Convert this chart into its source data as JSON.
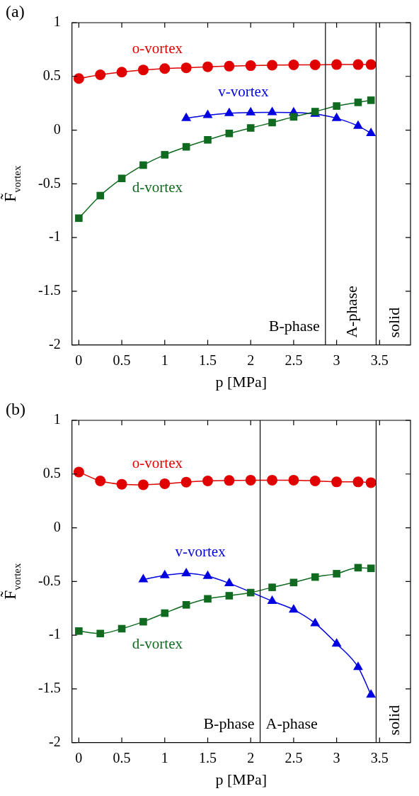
{
  "chart_data": [
    {
      "type": "line",
      "title": "(a)",
      "xlabel": "p [MPa]",
      "ylabel": "F̃$_{vortex}$",
      "xlim": [
        -0.08,
        3.86
      ],
      "ylim": [
        -2,
        1
      ],
      "xticks": [
        0,
        0.5,
        1,
        1.5,
        2,
        2.5,
        3,
        3.5
      ],
      "yticks": [
        -2,
        -1.5,
        -1,
        -0.5,
        0,
        0.5,
        1
      ],
      "grid": false,
      "legend": false,
      "series": [
        {
          "name": "o-vortex",
          "color": "#e00000",
          "marker": "circle",
          "x": [
            0,
            0.25,
            0.5,
            0.75,
            1,
            1.25,
            1.5,
            1.75,
            2,
            2.25,
            2.5,
            2.75,
            3,
            3.25,
            3.4
          ],
          "values": [
            0.48,
            0.515,
            0.54,
            0.56,
            0.573,
            0.58,
            0.59,
            0.595,
            0.6,
            0.604,
            0.607,
            0.607,
            0.61,
            0.61,
            0.61
          ]
        },
        {
          "name": "v-vortex",
          "color": "#0000e0",
          "marker": "triangle",
          "x": [
            1.25,
            1.5,
            1.75,
            2,
            2.25,
            2.5,
            2.75,
            3,
            3.25,
            3.4
          ],
          "values": [
            0.11,
            0.139,
            0.157,
            0.164,
            0.166,
            0.164,
            0.15,
            0.11,
            0.038,
            -0.029
          ]
        },
        {
          "name": "d-vortex",
          "color": "#106a20",
          "marker": "square",
          "x": [
            0,
            0.25,
            0.5,
            0.75,
            1,
            1.25,
            1.5,
            1.75,
            2,
            2.25,
            2.5,
            2.75,
            3,
            3.25,
            3.4
          ],
          "values": [
            -0.82,
            -0.61,
            -0.45,
            -0.326,
            -0.23,
            -0.156,
            -0.091,
            -0.031,
            0.02,
            0.07,
            0.123,
            0.172,
            0.224,
            0.258,
            0.278
          ]
        }
      ],
      "ref_lines": [
        {
          "axis": "x",
          "value": 2.87
        },
        {
          "axis": "x",
          "value": 3.46
        }
      ],
      "annotations": [
        "B-phase",
        "A-phase",
        "solid"
      ]
    },
    {
      "type": "line",
      "title": "(b)",
      "xlabel": "p [MPa]",
      "ylabel": "F̃$_{vortex}$",
      "xlim": [
        -0.08,
        3.86
      ],
      "ylim": [
        -2,
        1
      ],
      "xticks": [
        0,
        0.5,
        1,
        1.5,
        2,
        2.5,
        3,
        3.5
      ],
      "yticks": [
        -2,
        -1.5,
        -1,
        -0.5,
        0,
        0.5,
        1
      ],
      "grid": false,
      "legend": false,
      "series": [
        {
          "name": "o-vortex",
          "color": "#e00000",
          "marker": "circle",
          "x": [
            0,
            0.25,
            0.5,
            0.75,
            1,
            1.25,
            1.5,
            1.75,
            2,
            2.25,
            2.5,
            2.75,
            3,
            3.25,
            3.4
          ],
          "values": [
            0.519,
            0.436,
            0.405,
            0.4,
            0.41,
            0.425,
            0.436,
            0.44,
            0.443,
            0.443,
            0.443,
            0.436,
            0.427,
            0.427,
            0.42
          ]
        },
        {
          "name": "v-vortex",
          "color": "#0000e0",
          "marker": "triangle",
          "x": [
            0.75,
            1,
            1.25,
            1.5,
            1.75,
            2.25,
            2.5,
            2.75,
            3,
            3.25,
            3.4
          ],
          "values": [
            -0.481,
            -0.443,
            -0.425,
            -0.45,
            -0.517,
            -0.683,
            -0.763,
            -0.89,
            -1.08,
            -1.298,
            -1.555
          ]
        },
        {
          "name": "d-vortex",
          "color": "#106a20",
          "marker": "square",
          "x": [
            0,
            0.25,
            0.5,
            0.75,
            1,
            1.25,
            1.5,
            1.75,
            2,
            2.25,
            2.5,
            2.75,
            3,
            3.25,
            3.4
          ],
          "values": [
            -0.962,
            -0.985,
            -0.94,
            -0.875,
            -0.795,
            -0.718,
            -0.662,
            -0.633,
            -0.604,
            -0.555,
            -0.51,
            -0.459,
            -0.428,
            -0.372,
            -0.378
          ]
        }
      ],
      "ref_lines": [
        {
          "axis": "x",
          "value": 2.11
        },
        {
          "axis": "x",
          "value": 3.46
        }
      ],
      "annotations": [
        "B-phase",
        "A-phase",
        "solid"
      ]
    }
  ]
}
